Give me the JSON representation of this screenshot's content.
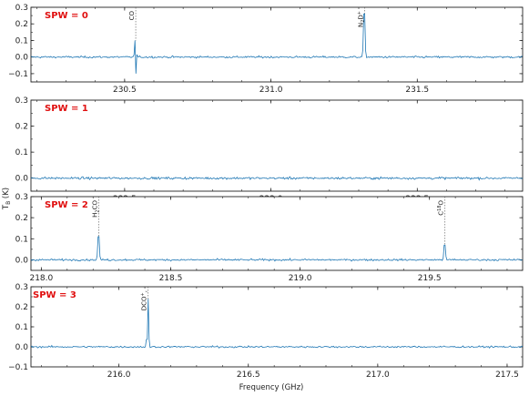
{
  "figure": {
    "ylabel": "T_B (K)",
    "xlabel": "Frequency (GHz)"
  },
  "colors": {
    "spectrum": "#1f77b4",
    "spw_label": "#e01010",
    "marker": "#555555"
  },
  "chart_data": [
    {
      "type": "line",
      "spw_label": "SPW = 0",
      "xlim": [
        230.18,
        231.86
      ],
      "ylim": [
        -0.15,
        0.3
      ],
      "xticks": [
        230.5,
        231.0,
        231.5
      ],
      "xtick_labels": [
        "230.5",
        "231.0",
        "231.5"
      ],
      "yticks": [
        -0.1,
        0.0,
        0.1,
        0.2,
        0.3
      ],
      "ytick_labels": [
        "−0.1",
        "0.0",
        "0.1",
        "0.2",
        "0.3"
      ],
      "noise_rms": 0.004,
      "baseline": 0.0,
      "lines": [
        {
          "label": "CO",
          "label_sub": "",
          "label_sup": "",
          "freq": 230.538,
          "peak": 0.1,
          "trough": -0.1
        },
        {
          "label": "N",
          "label_sub": "2",
          "label_after": "D",
          "label_sup": "+",
          "freq": 231.32,
          "peak": 0.26,
          "trough": 0
        }
      ]
    },
    {
      "type": "line",
      "spw_label": "SPW = 1",
      "xlim": [
        232.18,
        233.86
      ],
      "ylim": [
        -0.05,
        0.3
      ],
      "xticks": [
        232.5,
        233.0,
        233.5
      ],
      "xtick_labels": [
        "232.5",
        "233.0",
        "233.5"
      ],
      "yticks": [
        0.0,
        0.1,
        0.2,
        0.3
      ],
      "ytick_labels": [
        "0.0",
        "0.1",
        "0.2",
        "0.3"
      ],
      "noise_rms": 0.003,
      "baseline": 0.0,
      "lines": []
    },
    {
      "type": "line",
      "spw_label": "SPW = 2",
      "xlim": [
        217.96,
        219.86
      ],
      "ylim": [
        -0.05,
        0.3
      ],
      "xticks": [
        218.0,
        218.5,
        219.0,
        219.5
      ],
      "xtick_labels": [
        "218.0",
        "218.5",
        "219.0",
        "219.5"
      ],
      "yticks": [
        0.0,
        0.1,
        0.2,
        0.3
      ],
      "ytick_labels": [
        "0.0",
        "0.1",
        "0.2",
        "0.3"
      ],
      "noise_rms": 0.003,
      "baseline": 0.0,
      "lines": [
        {
          "label": "H",
          "label_sub": "2",
          "label_after": "CO",
          "label_sup": "",
          "freq": 218.222,
          "peak": 0.11,
          "trough": 0
        },
        {
          "label": "C",
          "label_pre_sup": "18",
          "label_after": "O",
          "label_sup": "",
          "freq": 219.56,
          "peak": 0.07,
          "trough": 0
        }
      ]
    },
    {
      "type": "line",
      "spw_label": "SPW = 3",
      "xlim": [
        215.66,
        217.56
      ],
      "ylim": [
        -0.1,
        0.3
      ],
      "xticks": [
        216.0,
        216.5,
        217.0,
        217.5
      ],
      "xtick_labels": [
        "216.0",
        "216.5",
        "217.0",
        "217.5"
      ],
      "yticks": [
        -0.1,
        0.0,
        0.1,
        0.2,
        0.3
      ],
      "ytick_labels": [
        "−0.1",
        "0.0",
        "0.1",
        "0.2",
        "0.3"
      ],
      "noise_rms": 0.003,
      "baseline": 0.0,
      "lines": [
        {
          "label": "DCO",
          "label_sub": "",
          "label_sup": "+",
          "label_tail": ",",
          "freq": 216.113,
          "peak": 0.24,
          "trough": 0
        }
      ]
    }
  ]
}
